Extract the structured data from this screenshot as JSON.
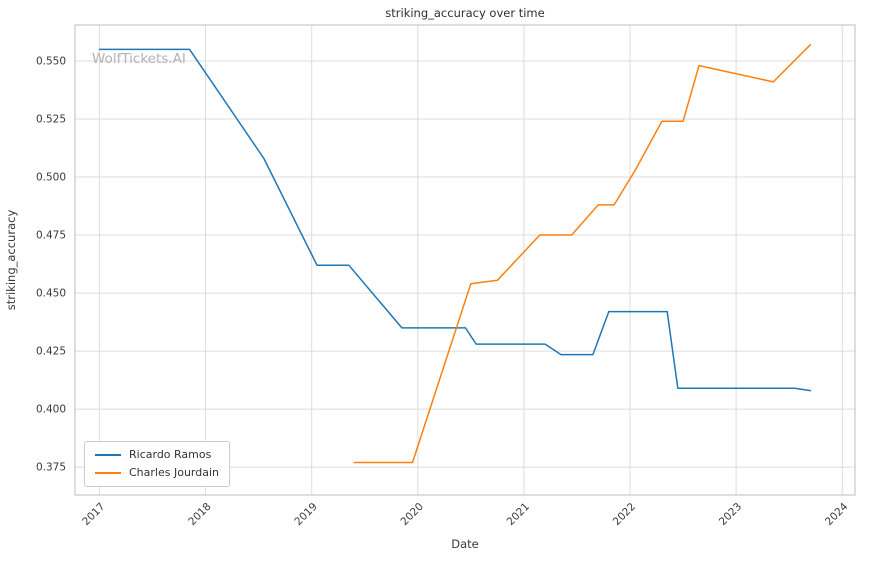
{
  "watermark": "WolfTickets.AI",
  "chart_data": {
    "type": "line",
    "title": "striking_accuracy over time",
    "xlabel": "Date",
    "ylabel": "striking_accuracy",
    "grid": true,
    "legend_position": "lower left",
    "xlim": [
      2016.77,
      2024.12
    ],
    "ylim": [
      0.363,
      0.5655
    ],
    "x_ticks": [
      2017,
      2018,
      2019,
      2020,
      2021,
      2022,
      2023,
      2024
    ],
    "x_tick_labels": [
      "2017",
      "2018",
      "2019",
      "2020",
      "2021",
      "2022",
      "2023",
      "2024"
    ],
    "y_ticks": [
      0.375,
      0.4,
      0.425,
      0.45,
      0.475,
      0.5,
      0.525,
      0.55
    ],
    "y_tick_labels": [
      "0.375",
      "0.400",
      "0.425",
      "0.450",
      "0.475",
      "0.500",
      "0.525",
      "0.550"
    ],
    "series": [
      {
        "name": "Ricardo Ramos",
        "color": "#1f77b4",
        "points": [
          [
            2017.0,
            0.555
          ],
          [
            2017.85,
            0.555
          ],
          [
            2018.55,
            0.508
          ],
          [
            2019.05,
            0.462
          ],
          [
            2019.35,
            0.462
          ],
          [
            2019.85,
            0.435
          ],
          [
            2020.45,
            0.435
          ],
          [
            2020.55,
            0.428
          ],
          [
            2021.2,
            0.428
          ],
          [
            2021.35,
            0.4235
          ],
          [
            2021.65,
            0.4235
          ],
          [
            2021.8,
            0.442
          ],
          [
            2022.35,
            0.442
          ],
          [
            2022.45,
            0.409
          ],
          [
            2023.55,
            0.409
          ],
          [
            2023.7,
            0.408
          ]
        ]
      },
      {
        "name": "Charles Jourdain",
        "color": "#ff7f0e",
        "points": [
          [
            2019.4,
            0.377
          ],
          [
            2019.95,
            0.377
          ],
          [
            2020.5,
            0.454
          ],
          [
            2020.75,
            0.4555
          ],
          [
            2021.15,
            0.475
          ],
          [
            2021.45,
            0.475
          ],
          [
            2021.7,
            0.488
          ],
          [
            2021.85,
            0.488
          ],
          [
            2022.05,
            0.503
          ],
          [
            2022.3,
            0.524
          ],
          [
            2022.5,
            0.524
          ],
          [
            2022.65,
            0.548
          ],
          [
            2023.35,
            0.541
          ],
          [
            2023.7,
            0.557
          ]
        ]
      }
    ]
  },
  "colors": {
    "grid": "#dcdcdc",
    "spine": "#c8c8c8",
    "tick_label": "#3a3a3a",
    "title": "#2f2f2f",
    "watermark": "#b3b3b3"
  }
}
